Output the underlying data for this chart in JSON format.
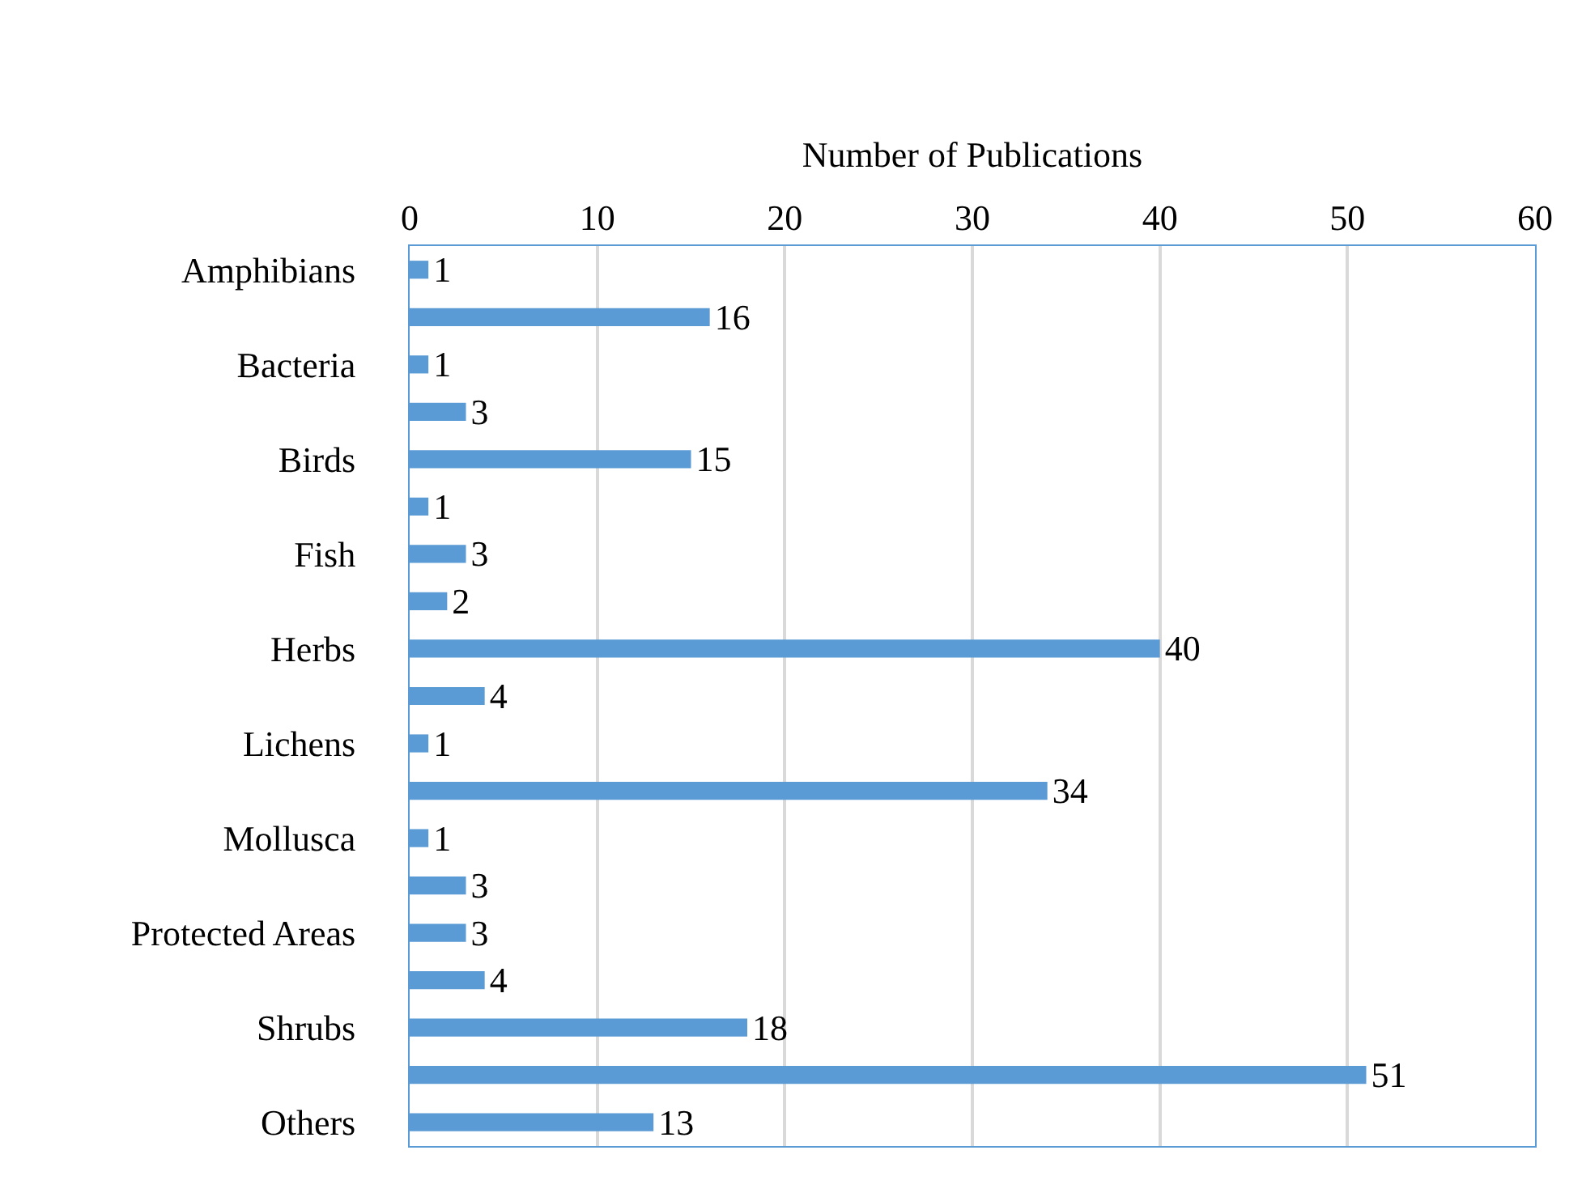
{
  "chart_data": {
    "type": "bar",
    "orientation": "horizontal",
    "xlabel": "Number of Publications",
    "categories": [
      "Amphibians",
      null,
      "Bacteria",
      null,
      "Birds",
      null,
      "Fish",
      null,
      "Herbs",
      null,
      "Lichens",
      null,
      "Mollusca",
      null,
      "Protected Areas",
      null,
      "Shrubs",
      null,
      "Others"
    ],
    "values": [
      1,
      16,
      1,
      3,
      15,
      1,
      3,
      2,
      40,
      4,
      1,
      34,
      1,
      3,
      3,
      4,
      18,
      51,
      13
    ],
    "color": "#5b9bd5",
    "xlim": [
      0,
      60
    ],
    "xticks": [
      0,
      10,
      20,
      30,
      40,
      50,
      60
    ],
    "grid": "x",
    "data_labels": true
  }
}
